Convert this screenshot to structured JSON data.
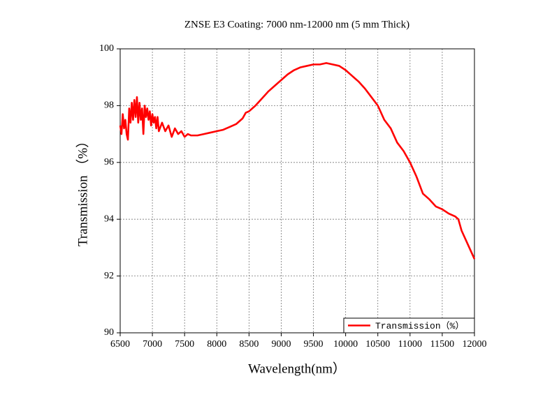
{
  "chart_data": {
    "type": "line",
    "title": "ZNSE E3 Coating: 7000 nm-12000 nm (5 mm Thick)",
    "x_label": "Wavelength(nm）",
    "y_label": "Transmission （%）",
    "xlim": [
      6500,
      12000
    ],
    "xticks": [
      6500,
      7000,
      7500,
      8000,
      8500,
      9000,
      9500,
      10000,
      10500,
      11000,
      11500,
      12000
    ],
    "ylim": [
      90,
      100
    ],
    "yticks": [
      90,
      92,
      94,
      96,
      98,
      100
    ],
    "grid": true,
    "legend": "lower right",
    "series": [
      {
        "name": "Transmission（%）",
        "color": "#ff0000",
        "x": [
          6500,
          6520,
          6540,
          6560,
          6580,
          6600,
          6620,
          6640,
          6660,
          6680,
          6700,
          6720,
          6740,
          6760,
          6780,
          6800,
          6820,
          6840,
          6860,
          6880,
          6900,
          6920,
          6940,
          6960,
          6980,
          7000,
          7020,
          7040,
          7060,
          7080,
          7100,
          7150,
          7200,
          7250,
          7300,
          7350,
          7400,
          7450,
          7500,
          7550,
          7600,
          7700,
          7800,
          7900,
          8000,
          8100,
          8200,
          8300,
          8400,
          8450,
          8500,
          8600,
          8700,
          8800,
          8900,
          9000,
          9100,
          9200,
          9300,
          9400,
          9500,
          9600,
          9700,
          9800,
          9900,
          10000,
          10100,
          10200,
          10300,
          10400,
          10500,
          10600,
          10700,
          10800,
          10900,
          11000,
          11100,
          11200,
          11300,
          11400,
          11500,
          11600,
          11700,
          11750,
          11800,
          11900,
          12000
        ],
        "values": [
          97.3,
          97.0,
          97.7,
          97.2,
          97.5,
          97.0,
          96.8,
          97.9,
          97.4,
          98.1,
          97.5,
          98.2,
          97.6,
          98.3,
          97.4,
          98.1,
          97.5,
          97.9,
          97.0,
          98.0,
          97.6,
          97.9,
          97.5,
          97.8,
          97.3,
          97.7,
          97.4,
          97.6,
          97.2,
          97.6,
          97.1,
          97.4,
          97.1,
          97.3,
          96.9,
          97.2,
          97.0,
          97.1,
          96.9,
          97.0,
          96.95,
          96.95,
          97.0,
          97.05,
          97.1,
          97.15,
          97.25,
          97.35,
          97.55,
          97.75,
          97.8,
          98.0,
          98.25,
          98.5,
          98.7,
          98.9,
          99.1,
          99.25,
          99.35,
          99.4,
          99.45,
          99.45,
          99.5,
          99.45,
          99.4,
          99.25,
          99.05,
          98.85,
          98.6,
          98.3,
          98.0,
          97.5,
          97.2,
          96.7,
          96.4,
          96.0,
          95.5,
          94.9,
          94.7,
          94.45,
          94.35,
          94.2,
          94.1,
          94.0,
          93.6,
          93.1,
          92.6
        ]
      }
    ]
  }
}
